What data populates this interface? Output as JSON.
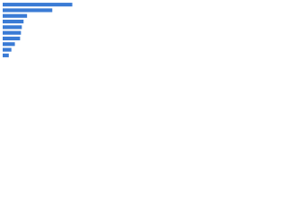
{
  "chart_data": {
    "type": "bar",
    "orientation": "horizontal",
    "categories": [
      null,
      null,
      null,
      null,
      null,
      null,
      null,
      null,
      null,
      null
    ],
    "values": [
      80,
      57,
      28,
      24,
      22,
      21,
      20,
      14,
      10,
      7
    ],
    "color": "#3a7bd5",
    "xlim": [
      0,
      100
    ]
  }
}
